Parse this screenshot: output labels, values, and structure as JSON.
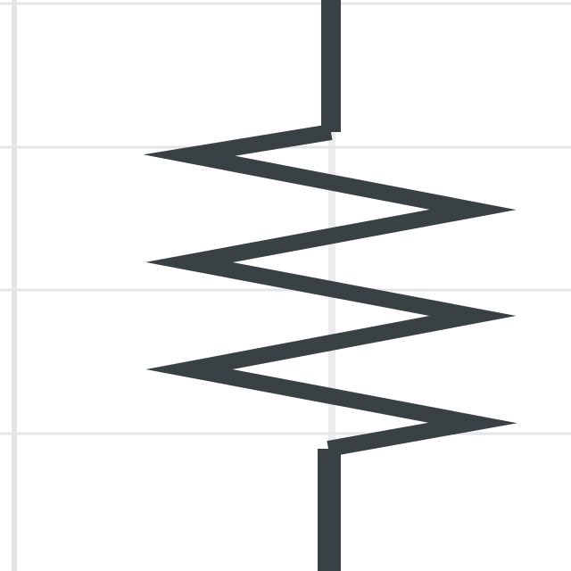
{
  "diagram": {
    "symbol": "resistor",
    "orientation": "vertical",
    "zigzag_peaks": 6
  },
  "colors": {
    "background": "#ffffff",
    "grid_line": "#e6e6e6",
    "wire": "#3a4145"
  }
}
